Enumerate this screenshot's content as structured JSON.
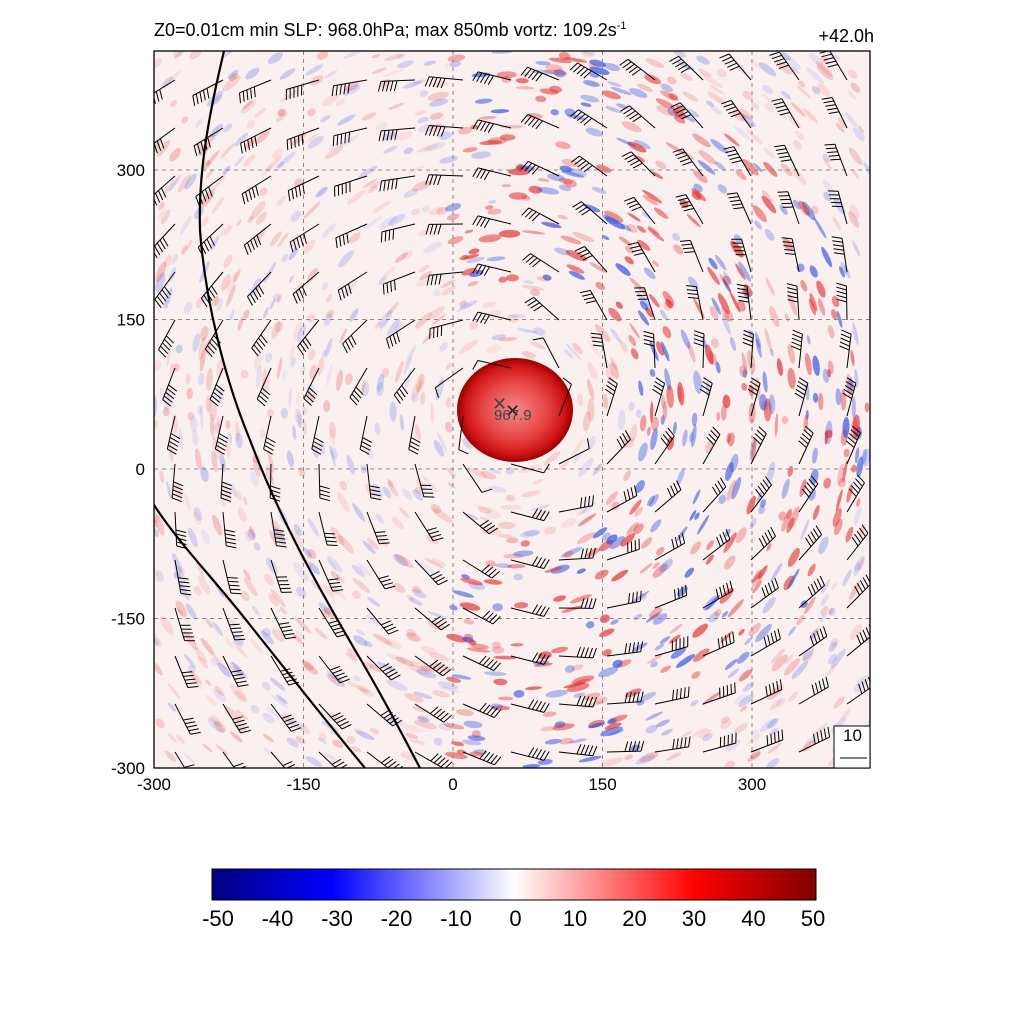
{
  "title": {
    "prefix": "Z0=0.01cm  min SLP: 968.0hPa; max 850mb vortz: 109.2s",
    "sup": "-1"
  },
  "timestamp": "+42.0h",
  "x_ticks": [
    "-300",
    "-150",
    "0",
    "150",
    "300"
  ],
  "y_ticks": [
    "300",
    "150",
    "0",
    "-150",
    "-300"
  ],
  "center_label": "967.9",
  "reference_vector_label": "10",
  "colorbar": {
    "ticks": [
      "-50",
      "-40",
      "-30",
      "-20",
      "-10",
      "0",
      "10",
      "20",
      "30",
      "40",
      "50"
    ],
    "colors": [
      "#000080",
      "#0000ff",
      "#ffffff",
      "#ff0000",
      "#800000"
    ]
  },
  "colors": {
    "positive": "#e03030",
    "strong_positive": "#b00000",
    "negative": "#3050e0",
    "grid": "#888888"
  }
}
